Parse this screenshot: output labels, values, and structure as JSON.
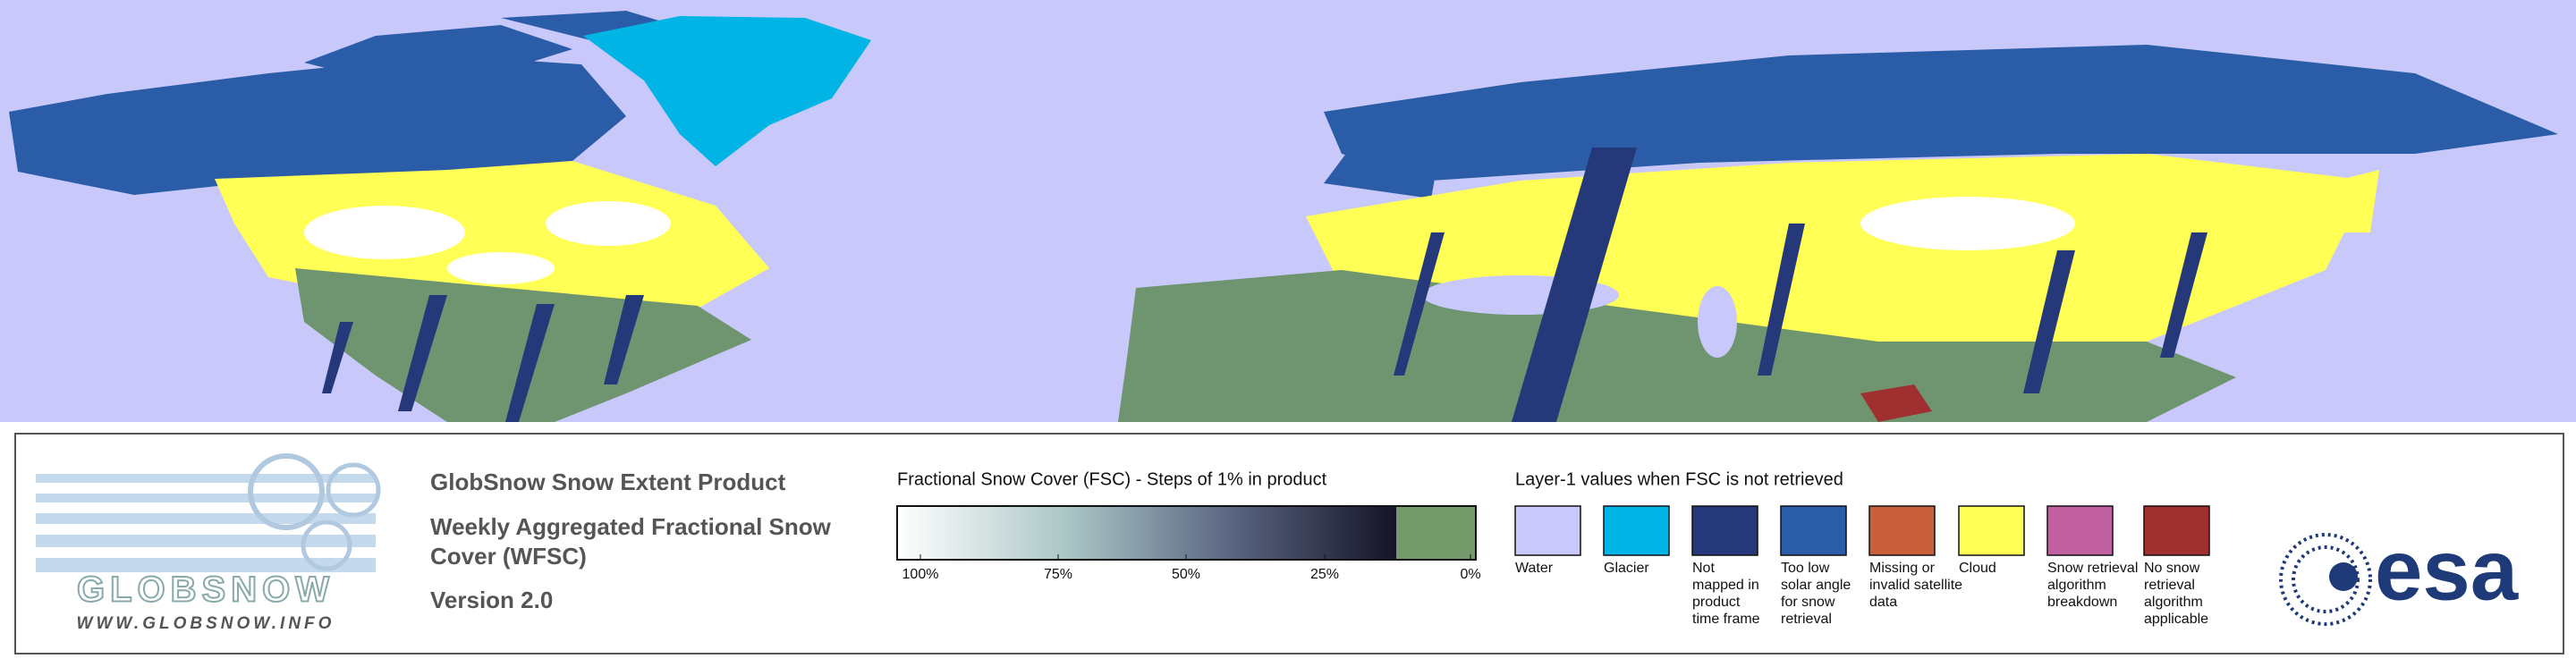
{
  "logo": {
    "brand": "GLOBSNOW",
    "url": "WWW.GLOBSNOW.INFO"
  },
  "product": {
    "title": "GlobSnow Snow Extent Product",
    "subtitle_lines": [
      "Weekly Aggregated Fractional Snow",
      "Cover (WFSC)"
    ],
    "version": "Version 2.0"
  },
  "fsc_legend": {
    "title": "Fractional Snow Cover (FSC) - Steps of 1% in product",
    "tick_labels": [
      "100%",
      "75%",
      "50%",
      "25%",
      "0%"
    ]
  },
  "layer1_legend": {
    "title": "Layer-1 values when FSC is not retrieved",
    "items": [
      {
        "label_lines": [
          "Water"
        ],
        "color": "#c8c8fa"
      },
      {
        "label_lines": [
          "Glacier"
        ],
        "color": "#00b4e6"
      },
      {
        "label_lines": [
          "Not",
          "mapped in",
          "product",
          "time frame"
        ],
        "color": "#24387a"
      },
      {
        "label_lines": [
          "Too low",
          "solar angle",
          "for snow",
          "retrieval"
        ],
        "color": "#2a5ca8"
      },
      {
        "label_lines": [
          "Missing or",
          "invalid satellite",
          "data"
        ],
        "color": "#c8603c"
      },
      {
        "label_lines": [
          "Cloud"
        ],
        "color": "#ffff55"
      },
      {
        "label_lines": [
          "Snow retrieval",
          "algorithm",
          "breakdown"
        ],
        "color": "#c060a0"
      },
      {
        "label_lines": [
          "No snow",
          "retrieval",
          "algorithm",
          "applicable"
        ],
        "color": "#a03030"
      }
    ]
  },
  "esa_logo": "esa"
}
